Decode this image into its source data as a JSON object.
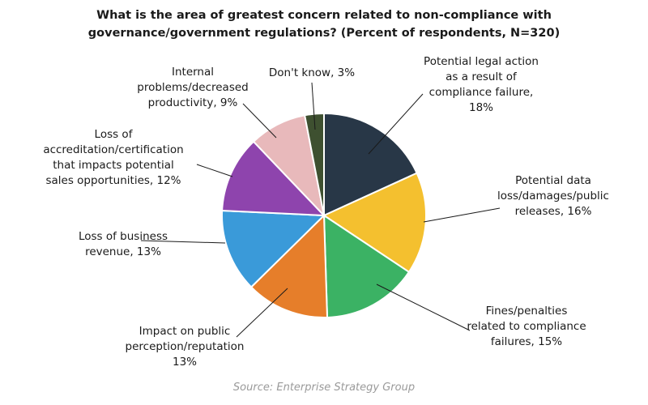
{
  "chart_data": {
    "type": "pie",
    "title": [
      "What is the area of greatest concern related to non-compliance with",
      "governance/government regulations? (Percent of respondents, N=320)"
    ],
    "source": "Source: Enterprise Strategy Group",
    "unit": "%",
    "slices": [
      {
        "label": "Potential legal action as a result of compliance failure",
        "value": 18,
        "color": "#283747",
        "label_lines": [
          "Potential legal action",
          "as a result of",
          "compliance failure,",
          "18%"
        ]
      },
      {
        "label": "Potential data loss/damages/public releases",
        "value": 16,
        "color": "#F4C02F",
        "label_lines": [
          "Potential data",
          "loss/damages/public",
          "releases, 16%"
        ]
      },
      {
        "label": "Fines/penalties related to compliance failures",
        "value": 15,
        "color": "#3BB264",
        "label_lines": [
          "Fines/penalties",
          "related to compliance",
          "failures, 15%"
        ]
      },
      {
        "label": "Impact on public perception/reputation",
        "value": 13,
        "color": "#E67E2A",
        "label_lines": [
          "Impact on public",
          "perception/reputation",
          "13%"
        ]
      },
      {
        "label": "Loss of business revenue",
        "value": 13,
        "color": "#3A9AD9",
        "label_lines": [
          "Loss of business",
          "revenue, 13%"
        ]
      },
      {
        "label": "Loss of accreditation/certification that impacts potential sales opportunities",
        "value": 12,
        "color": "#8E44AD",
        "label_lines": [
          "Loss of",
          "accreditation/certification",
          "that impacts potential",
          "sales opportunities, 12%"
        ]
      },
      {
        "label": "Internal problems/decreased productivity",
        "value": 9,
        "color": "#E8B9BB",
        "label_lines": [
          "Internal",
          "problems/decreased",
          "productivity, 9%"
        ]
      },
      {
        "label": "Don't know",
        "value": 3,
        "color": "#3E5030",
        "label_lines": [
          "Don't know, 3%"
        ]
      }
    ]
  }
}
